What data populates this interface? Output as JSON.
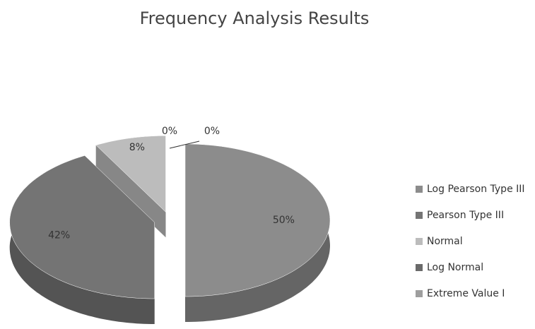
{
  "chart_data": {
    "type": "pie3d",
    "title": "Frequency Analysis Results",
    "categories": [
      "Log Pearson Type III",
      "Pearson Type III",
      "Normal",
      "Log Normal",
      "Extreme Value I"
    ],
    "values": [
      50,
      42,
      8,
      0,
      0
    ],
    "value_labels": [
      "50%",
      "42%",
      "8%",
      "0%",
      "0%"
    ],
    "colors": [
      "#8c8c8c",
      "#747474",
      "#bcbcbc",
      "#6a6a6a",
      "#9e9e9e"
    ],
    "legend": "right"
  }
}
